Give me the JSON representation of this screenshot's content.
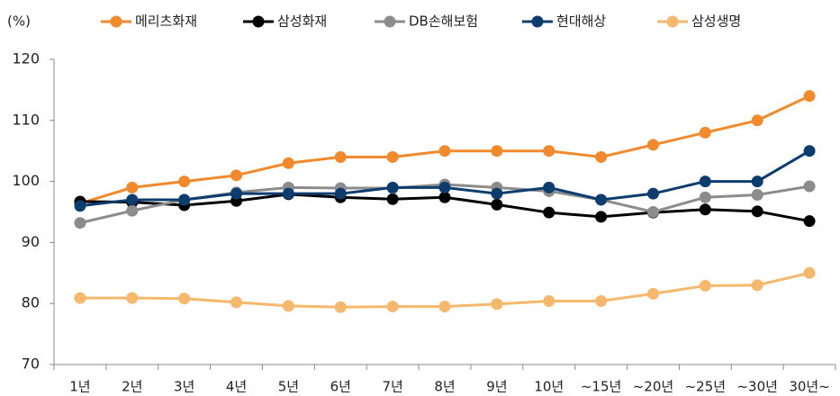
{
  "chart_data": {
    "type": "line",
    "y_label": "(%)",
    "categories": [
      "1년",
      "2년",
      "3년",
      "4년",
      "5년",
      "6년",
      "7년",
      "8년",
      "9년",
      "10년",
      "~15년",
      "~20년",
      "~25년",
      "~30년",
      "30년~"
    ],
    "series": [
      {
        "name": "메리츠화재",
        "color": "#f08a2c",
        "values": [
          96.4,
          99,
          100,
          101,
          103,
          104,
          104,
          105,
          105,
          105,
          104,
          106,
          108,
          110,
          114
        ]
      },
      {
        "name": "삼성화재",
        "color": "#000000",
        "values": [
          96.7,
          96.6,
          96.1,
          96.8,
          97.9,
          97.4,
          97.1,
          97.4,
          96.2,
          94.9,
          94.2,
          94.9,
          95.4,
          95.1,
          93.5
        ]
      },
      {
        "name": "DB손해보험",
        "color": "#8c8c8c",
        "values": [
          93.2,
          95.2,
          97,
          98.2,
          99,
          98.9,
          98.9,
          99.5,
          99,
          98.4,
          97,
          95,
          97.4,
          97.8,
          99.2
        ]
      },
      {
        "name": "현대해상",
        "color": "#0d3c6e",
        "values": [
          96,
          97,
          97,
          98,
          98,
          98,
          99,
          99,
          98,
          99,
          97,
          98,
          100,
          100,
          105
        ]
      },
      {
        "name": "삼성생명",
        "color": "#f5b86c",
        "values": [
          80.9,
          80.9,
          80.8,
          80.2,
          79.6,
          79.4,
          79.5,
          79.5,
          79.9,
          80.4,
          80.4,
          81.6,
          82.9,
          83,
          85
        ]
      }
    ],
    "ylim": [
      70,
      120
    ],
    "yticks": [
      70,
      80,
      90,
      100,
      110,
      120
    ],
    "grid": false
  }
}
